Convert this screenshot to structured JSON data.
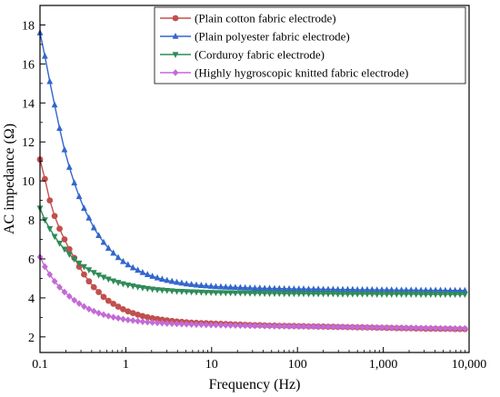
{
  "chart_data": {
    "type": "line",
    "xscale": "log",
    "xlabel": "Frequency (Hz)",
    "ylabel": "AC impedance (Ω)",
    "xlim": [
      0.1,
      10000
    ],
    "ylim": [
      1.2,
      19.0
    ],
    "xticks": [
      0.1,
      1,
      10,
      100,
      1000,
      10000
    ],
    "xtick_labels": [
      "0.1",
      "1",
      "10",
      "100",
      "1,000",
      "10,000"
    ],
    "yticks": [
      2,
      4,
      6,
      8,
      10,
      12,
      14,
      16,
      18
    ],
    "ytick_labels": [
      "2",
      "4",
      "6",
      "8",
      "10",
      "12",
      "14",
      "16",
      "18"
    ],
    "grid": false,
    "legend_position": "top-right",
    "series": [
      {
        "name": "(Plain cotton fabric electrode)",
        "color": "#c0504d",
        "marker": "circle",
        "x": [
          0.1,
          0.114,
          0.13,
          0.148,
          0.169,
          0.193,
          0.22,
          0.251,
          0.286,
          0.326,
          0.372,
          0.424,
          0.483,
          0.551,
          0.628,
          0.716,
          0.816,
          0.93,
          1.06,
          1.21,
          1.38,
          1.57,
          1.79,
          2.04,
          2.33,
          2.65,
          3.02,
          3.45,
          3.93,
          4.48,
          5.1,
          5.82,
          6.64,
          7.57,
          8.63,
          9.84,
          11.2,
          12.8,
          14.6,
          16.6,
          18.9,
          21.6,
          24.6,
          28.0,
          31.9,
          36.4,
          41.5,
          47.3,
          54.0,
          61.5,
          70.2,
          80.0,
          91.2,
          104,
          118,
          135,
          154,
          175,
          200,
          228,
          260,
          296,
          337,
          385,
          439,
          500,
          570,
          650,
          741,
          845,
          963,
          1100,
          1250,
          1430,
          1630,
          1850,
          2110,
          2410,
          2750,
          3130,
          3570,
          4070,
          4640,
          5290,
          6030,
          6870,
          7830,
          8930
        ],
        "y": [
          11.1,
          10.1,
          9.0,
          8.2,
          7.55,
          7.0,
          6.5,
          6.05,
          5.6,
          5.2,
          4.85,
          4.55,
          4.3,
          4.05,
          3.85,
          3.7,
          3.55,
          3.42,
          3.31,
          3.22,
          3.14,
          3.07,
          3.01,
          2.96,
          2.92,
          2.88,
          2.85,
          2.82,
          2.79,
          2.77,
          2.75,
          2.73,
          2.72,
          2.71,
          2.7,
          2.69,
          2.68,
          2.67,
          2.66,
          2.65,
          2.64,
          2.63,
          2.62,
          2.61,
          2.6,
          2.6,
          2.59,
          2.58,
          2.58,
          2.57,
          2.57,
          2.56,
          2.56,
          2.55,
          2.55,
          2.54,
          2.54,
          2.53,
          2.53,
          2.52,
          2.52,
          2.51,
          2.51,
          2.5,
          2.5,
          2.49,
          2.49,
          2.48,
          2.48,
          2.47,
          2.47,
          2.46,
          2.46,
          2.45,
          2.45,
          2.44,
          2.44,
          2.43,
          2.43,
          2.42,
          2.42,
          2.42,
          2.41,
          2.41,
          2.41,
          2.4,
          2.4,
          2.4
        ]
      },
      {
        "name": "(Plain polyester fabric electrode)",
        "color": "#3366cc",
        "marker": "triangle-up",
        "x": [
          0.1,
          0.114,
          0.13,
          0.148,
          0.169,
          0.193,
          0.22,
          0.251,
          0.286,
          0.326,
          0.372,
          0.424,
          0.483,
          0.551,
          0.628,
          0.716,
          0.816,
          0.93,
          1.06,
          1.21,
          1.38,
          1.57,
          1.79,
          2.04,
          2.33,
          2.65,
          3.02,
          3.45,
          3.93,
          4.48,
          5.1,
          5.82,
          6.64,
          7.57,
          8.63,
          9.84,
          11.2,
          12.8,
          14.6,
          16.6,
          18.9,
          21.6,
          24.6,
          28.0,
          31.9,
          36.4,
          41.5,
          47.3,
          54.0,
          61.5,
          70.2,
          80.0,
          91.2,
          104,
          118,
          135,
          154,
          175,
          200,
          228,
          260,
          296,
          337,
          385,
          439,
          500,
          570,
          650,
          741,
          845,
          963,
          1100,
          1250,
          1430,
          1630,
          1850,
          2110,
          2410,
          2750,
          3130,
          3570,
          4070,
          4640,
          5290,
          6030,
          6870,
          7830,
          8930
        ],
        "y": [
          17.6,
          16.4,
          15.1,
          13.9,
          12.7,
          11.6,
          10.7,
          9.9,
          9.2,
          8.6,
          8.1,
          7.6,
          7.2,
          6.85,
          6.55,
          6.3,
          6.07,
          5.87,
          5.7,
          5.55,
          5.42,
          5.3,
          5.2,
          5.11,
          5.03,
          4.96,
          4.9,
          4.85,
          4.8,
          4.76,
          4.72,
          4.69,
          4.66,
          4.64,
          4.62,
          4.6,
          4.58,
          4.57,
          4.56,
          4.55,
          4.54,
          4.53,
          4.52,
          4.51,
          4.5,
          4.5,
          4.49,
          4.49,
          4.48,
          4.48,
          4.47,
          4.47,
          4.46,
          4.46,
          4.46,
          4.45,
          4.45,
          4.45,
          4.44,
          4.44,
          4.44,
          4.43,
          4.43,
          4.43,
          4.43,
          4.42,
          4.42,
          4.42,
          4.42,
          4.41,
          4.41,
          4.41,
          4.41,
          4.4,
          4.4,
          4.4,
          4.4,
          4.4,
          4.39,
          4.39,
          4.39,
          4.39,
          4.39,
          4.38,
          4.38,
          4.38,
          4.38,
          4.38
        ]
      },
      {
        "name": "(Corduroy fabric electrode)",
        "color": "#2e8b57",
        "marker": "triangle-down",
        "x": [
          0.1,
          0.114,
          0.13,
          0.148,
          0.169,
          0.193,
          0.22,
          0.251,
          0.286,
          0.326,
          0.372,
          0.424,
          0.483,
          0.551,
          0.628,
          0.716,
          0.816,
          0.93,
          1.06,
          1.21,
          1.38,
          1.57,
          1.79,
          2.04,
          2.33,
          2.65,
          3.02,
          3.45,
          3.93,
          4.48,
          5.1,
          5.82,
          6.64,
          7.57,
          8.63,
          9.84,
          11.2,
          12.8,
          14.6,
          16.6,
          18.9,
          21.6,
          24.6,
          28.0,
          31.9,
          36.4,
          41.5,
          47.3,
          54.0,
          61.5,
          70.2,
          80.0,
          91.2,
          104,
          118,
          135,
          154,
          175,
          200,
          228,
          260,
          296,
          337,
          385,
          439,
          500,
          570,
          650,
          741,
          845,
          963,
          1100,
          1250,
          1430,
          1630,
          1850,
          2110,
          2410,
          2750,
          3130,
          3570,
          4070,
          4640,
          5290,
          6030,
          6870,
          7830,
          8930
        ],
        "y": [
          8.6,
          8.0,
          7.55,
          7.15,
          6.8,
          6.5,
          6.23,
          5.99,
          5.78,
          5.6,
          5.44,
          5.3,
          5.17,
          5.06,
          4.96,
          4.87,
          4.79,
          4.72,
          4.66,
          4.61,
          4.56,
          4.52,
          4.48,
          4.45,
          4.42,
          4.4,
          4.38,
          4.36,
          4.34,
          4.33,
          4.32,
          4.31,
          4.3,
          4.29,
          4.28,
          4.28,
          4.27,
          4.27,
          4.26,
          4.26,
          4.25,
          4.25,
          4.25,
          4.24,
          4.24,
          4.24,
          4.23,
          4.23,
          4.23,
          4.23,
          4.22,
          4.22,
          4.22,
          4.22,
          4.22,
          4.21,
          4.21,
          4.21,
          4.21,
          4.21,
          4.21,
          4.2,
          4.2,
          4.2,
          4.2,
          4.2,
          4.2,
          4.2,
          4.2,
          4.19,
          4.19,
          4.19,
          4.19,
          4.19,
          4.19,
          4.19,
          4.19,
          4.19,
          4.18,
          4.18,
          4.18,
          4.18,
          4.18,
          4.18,
          4.18,
          4.18,
          4.18,
          4.18
        ]
      },
      {
        "name": "(Highly hygroscopic knitted fabric electrode)",
        "color": "#c36ad6",
        "marker": "diamond",
        "x": [
          0.1,
          0.114,
          0.13,
          0.148,
          0.169,
          0.193,
          0.22,
          0.251,
          0.286,
          0.326,
          0.372,
          0.424,
          0.483,
          0.551,
          0.628,
          0.716,
          0.816,
          0.93,
          1.06,
          1.21,
          1.38,
          1.57,
          1.79,
          2.04,
          2.33,
          2.65,
          3.02,
          3.45,
          3.93,
          4.48,
          5.1,
          5.82,
          6.64,
          7.57,
          8.63,
          9.84,
          11.2,
          12.8,
          14.6,
          16.6,
          18.9,
          21.6,
          24.6,
          28.0,
          31.9,
          36.4,
          41.5,
          47.3,
          54.0,
          61.5,
          70.2,
          80.0,
          91.2,
          104,
          118,
          135,
          154,
          175,
          200,
          228,
          260,
          296,
          337,
          385,
          439,
          500,
          570,
          650,
          741,
          845,
          963,
          1100,
          1250,
          1430,
          1630,
          1850,
          2110,
          2410,
          2750,
          3130,
          3570,
          4070,
          4640,
          5290,
          6030,
          6870,
          7830,
          8930
        ],
        "y": [
          6.1,
          5.6,
          5.2,
          4.85,
          4.55,
          4.3,
          4.08,
          3.88,
          3.71,
          3.56,
          3.43,
          3.32,
          3.22,
          3.14,
          3.07,
          3.01,
          2.96,
          2.91,
          2.87,
          2.84,
          2.81,
          2.78,
          2.76,
          2.74,
          2.72,
          2.71,
          2.69,
          2.68,
          2.67,
          2.66,
          2.65,
          2.64,
          2.63,
          2.63,
          2.62,
          2.61,
          2.61,
          2.6,
          2.6,
          2.59,
          2.59,
          2.58,
          2.58,
          2.57,
          2.57,
          2.57,
          2.56,
          2.56,
          2.55,
          2.55,
          2.55,
          2.54,
          2.54,
          2.54,
          2.53,
          2.53,
          2.53,
          2.52,
          2.52,
          2.52,
          2.51,
          2.51,
          2.51,
          2.5,
          2.5,
          2.5,
          2.49,
          2.49,
          2.49,
          2.48,
          2.48,
          2.48,
          2.47,
          2.47,
          2.47,
          2.46,
          2.46,
          2.46,
          2.45,
          2.45,
          2.45,
          2.44,
          2.44,
          2.44,
          2.43,
          2.43,
          2.43,
          2.43
        ]
      }
    ]
  }
}
